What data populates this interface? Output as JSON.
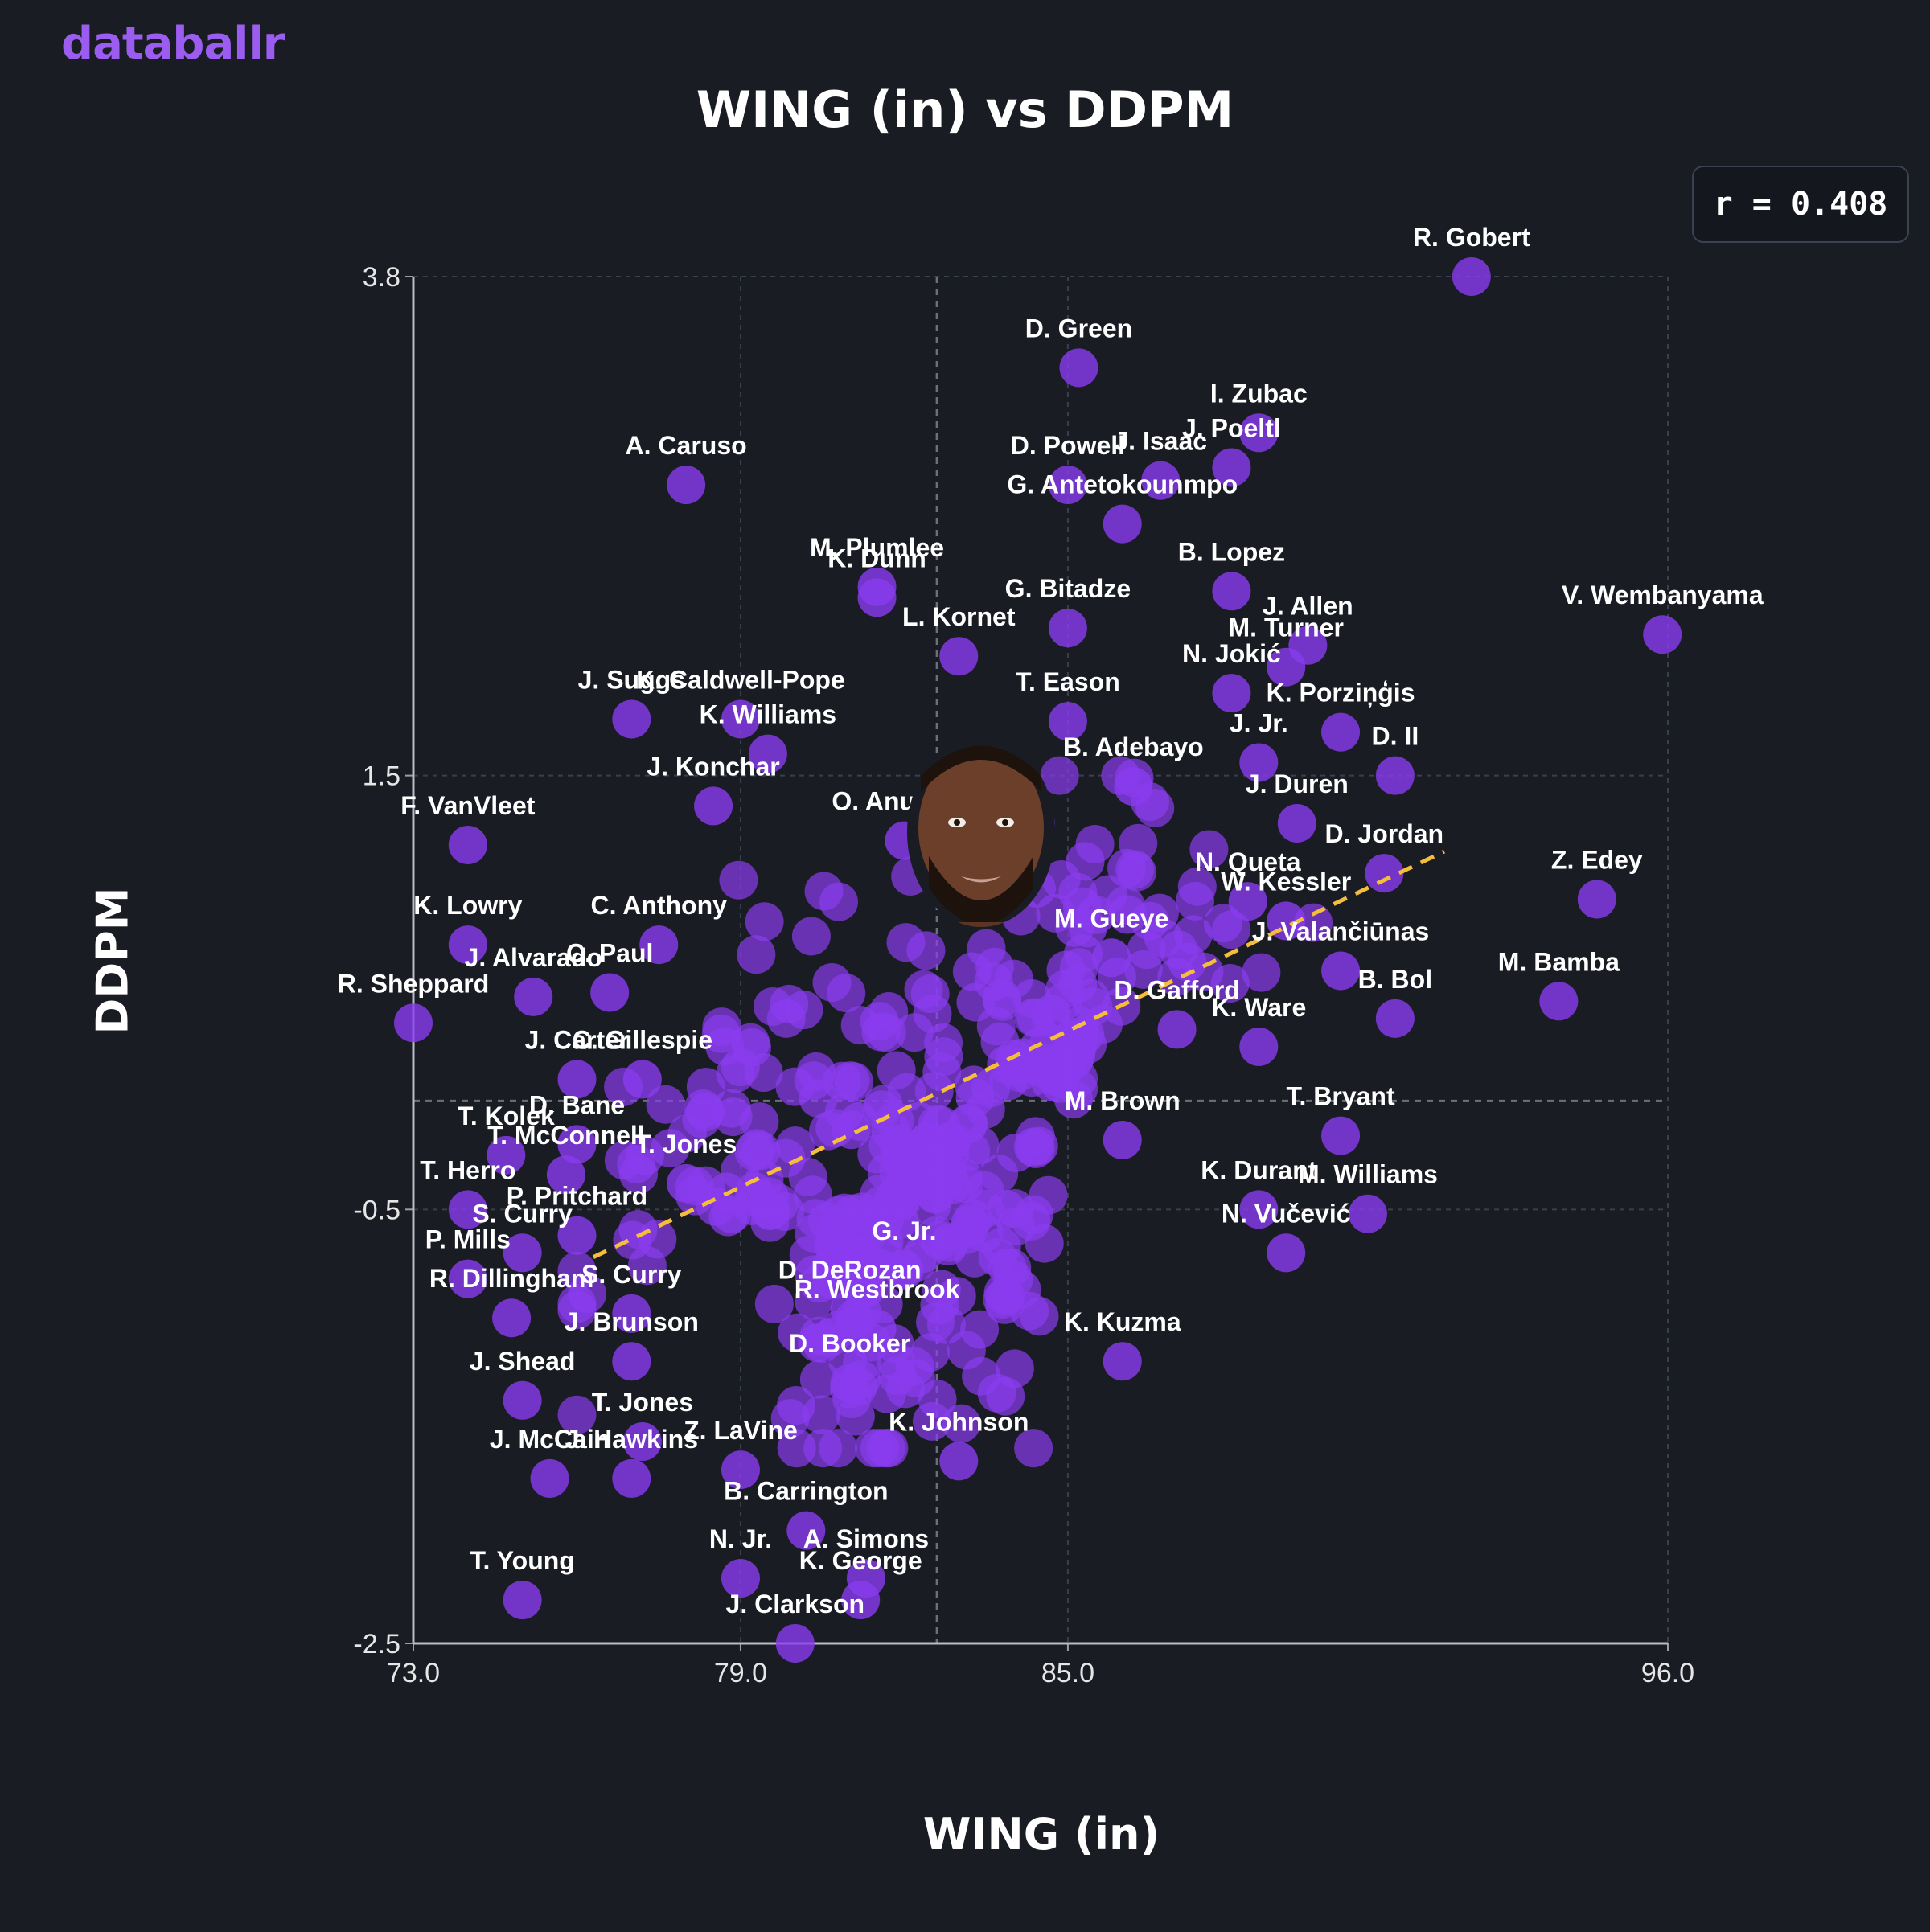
{
  "brand": "databallr",
  "chart_data": {
    "type": "scatter",
    "title": "WING (in) vs DDPM",
    "xlabel": "WING (in)",
    "ylabel": "DDPM",
    "xlim": [
      73.0,
      96.0
    ],
    "ylim": [
      -2.5,
      3.8
    ],
    "xticks": [
      "73.0",
      "79.0",
      "85.0",
      "96.0"
    ],
    "yticks": [
      "3.8",
      "1.5",
      "-0.5",
      "-2.5"
    ],
    "annotation": "r = 0.408",
    "mean_x": 82.6,
    "mean_y": 0.0,
    "trendline": [
      [
        76.3,
        -0.72
      ],
      [
        91.9,
        1.15
      ]
    ],
    "grid": true,
    "colors": {
      "point": "#8a3cf0",
      "trend": "#f5bd3c",
      "background": "#1a1c24"
    },
    "labeled_points": [
      {
        "name": "R. Gobert",
        "x": 92.4,
        "y": 3.8
      },
      {
        "name": "D. Green",
        "x": 85.2,
        "y": 3.38
      },
      {
        "name": "I. Zubac",
        "x": 88.5,
        "y": 3.08
      },
      {
        "name": "J. Poeltl",
        "x": 88.0,
        "y": 2.92
      },
      {
        "name": "A. Caruso",
        "x": 78.0,
        "y": 2.84
      },
      {
        "name": "D. Powell",
        "x": 85.0,
        "y": 2.84
      },
      {
        "name": "J. Isaac",
        "x": 86.7,
        "y": 2.86
      },
      {
        "name": "K. Dunn",
        "x": 81.5,
        "y": 2.32
      },
      {
        "name": "G. Antetokounmpo",
        "x": 86.0,
        "y": 2.66
      },
      {
        "name": "G. Bitadze",
        "x": 85.0,
        "y": 2.18
      },
      {
        "name": "B. Lopez",
        "x": 88.0,
        "y": 2.35
      },
      {
        "name": "V. Wembanyama",
        "x": 95.9,
        "y": 2.15
      },
      {
        "name": "M. Plumlee",
        "x": 81.5,
        "y": 2.37
      },
      {
        "name": "L. Kornet",
        "x": 83.0,
        "y": 2.05
      },
      {
        "name": "M. Turner",
        "x": 89.0,
        "y": 2.0
      },
      {
        "name": "J. Allen",
        "x": 89.4,
        "y": 2.1
      },
      {
        "name": "K. Caldwell-Pope",
        "x": 79.0,
        "y": 1.76
      },
      {
        "name": "J. Suggs",
        "x": 77.0,
        "y": 1.76
      },
      {
        "name": "N. Jokić",
        "x": 88.0,
        "y": 1.88
      },
      {
        "name": "K. Porziņģis",
        "x": 90.0,
        "y": 1.7
      },
      {
        "name": "K. Williams",
        "x": 79.5,
        "y": 1.6
      },
      {
        "name": "T. Eason",
        "x": 85.0,
        "y": 1.75
      },
      {
        "name": "J. Jr.",
        "x": 88.5,
        "y": 1.56
      },
      {
        "name": "D. II",
        "x": 91.0,
        "y": 1.5
      },
      {
        "name": "J. Konchar",
        "x": 78.5,
        "y": 1.36
      },
      {
        "name": "F. VanVleet",
        "x": 74.0,
        "y": 1.18
      },
      {
        "name": "B. Adebayo",
        "x": 86.2,
        "y": 1.45
      },
      {
        "name": "O. Anunoby",
        "x": 82.0,
        "y": 1.2
      },
      {
        "name": "J. Duren",
        "x": 89.2,
        "y": 1.28
      },
      {
        "name": "D. Jordan",
        "x": 90.8,
        "y": 1.05
      },
      {
        "name": "Z. Edey",
        "x": 94.7,
        "y": 0.93
      },
      {
        "name": "N. Queta",
        "x": 88.3,
        "y": 0.92
      },
      {
        "name": "W. Kessler",
        "x": 89.0,
        "y": 0.83
      },
      {
        "name": "K. Lowry",
        "x": 74.0,
        "y": 0.72
      },
      {
        "name": "C. Anthony",
        "x": 77.5,
        "y": 0.72
      },
      {
        "name": "M. Gueye",
        "x": 85.8,
        "y": 0.66
      },
      {
        "name": "J. Valančiūnas",
        "x": 90.0,
        "y": 0.6
      },
      {
        "name": "M. Bamba",
        "x": 94.0,
        "y": 0.46
      },
      {
        "name": "J. Alvarado",
        "x": 75.2,
        "y": 0.48
      },
      {
        "name": "C. Paul",
        "x": 76.6,
        "y": 0.5
      },
      {
        "name": "B. Bol",
        "x": 91.0,
        "y": 0.38
      },
      {
        "name": "R. Sheppard",
        "x": 73.0,
        "y": 0.36
      },
      {
        "name": "D. Gafford",
        "x": 87.0,
        "y": 0.33
      },
      {
        "name": "K. Ware",
        "x": 88.5,
        "y": 0.25
      },
      {
        "name": "J. Carter",
        "x": 76.0,
        "y": 0.1
      },
      {
        "name": "C. Gillespie",
        "x": 77.2,
        "y": 0.1
      },
      {
        "name": "T. Bryant",
        "x": 90.0,
        "y": -0.16
      },
      {
        "name": "T. Kolek",
        "x": 74.7,
        "y": -0.25
      },
      {
        "name": "D. Bane",
        "x": 76.0,
        "y": -0.2
      },
      {
        "name": "M. Brown",
        "x": 86.0,
        "y": -0.18
      },
      {
        "name": "T. McConnell",
        "x": 75.8,
        "y": -0.34
      },
      {
        "name": "T. Jones",
        "x": 78.0,
        "y": -0.38
      },
      {
        "name": "K. Durant",
        "x": 88.5,
        "y": -0.5
      },
      {
        "name": "M. Williams",
        "x": 90.5,
        "y": -0.52
      },
      {
        "name": "T. Herro",
        "x": 74.0,
        "y": -0.5
      },
      {
        "name": "P. Pritchard",
        "x": 76.0,
        "y": -0.62
      },
      {
        "name": "S. Curry",
        "x": 75.0,
        "y": -0.7
      },
      {
        "name": "G. Jr.",
        "x": 82.0,
        "y": -0.78
      },
      {
        "name": "N. Vučević",
        "x": 89.0,
        "y": -0.7
      },
      {
        "name": "P. Mills",
        "x": 74.0,
        "y": -0.82
      },
      {
        "name": "R. Dillingham",
        "x": 74.8,
        "y": -1.0
      },
      {
        "name": "S. Curry",
        "x": 77.0,
        "y": -0.98
      },
      {
        "name": "D. DeRozan",
        "x": 81.0,
        "y": -0.96
      },
      {
        "name": "R. Westbrook",
        "x": 81.5,
        "y": -1.05
      },
      {
        "name": "K. Kuzma",
        "x": 86.0,
        "y": -1.2
      },
      {
        "name": "J. Brunson",
        "x": 77.0,
        "y": -1.2
      },
      {
        "name": "J. Shead",
        "x": 75.0,
        "y": -1.38
      },
      {
        "name": "D. Booker",
        "x": 81.0,
        "y": -1.3
      },
      {
        "name": "T. Jones",
        "x": 77.2,
        "y": -1.57
      },
      {
        "name": "K. Johnson",
        "x": 83.0,
        "y": -1.66
      },
      {
        "name": "J. McCain",
        "x": 75.5,
        "y": -1.74
      },
      {
        "name": "J. Hawkins",
        "x": 77.0,
        "y": -1.74
      },
      {
        "name": "Z. LaVine",
        "x": 79.0,
        "y": -1.7
      },
      {
        "name": "B. Carrington",
        "x": 80.2,
        "y": -1.98
      },
      {
        "name": "N. Jr.",
        "x": 79.0,
        "y": -2.2
      },
      {
        "name": "A. Simons",
        "x": 81.3,
        "y": -2.2
      },
      {
        "name": "T. Young",
        "x": 75.0,
        "y": -2.3
      },
      {
        "name": "K. George",
        "x": 81.2,
        "y": -2.3
      },
      {
        "name": "J. Clarkson",
        "x": 80.0,
        "y": -2.5
      }
    ]
  }
}
